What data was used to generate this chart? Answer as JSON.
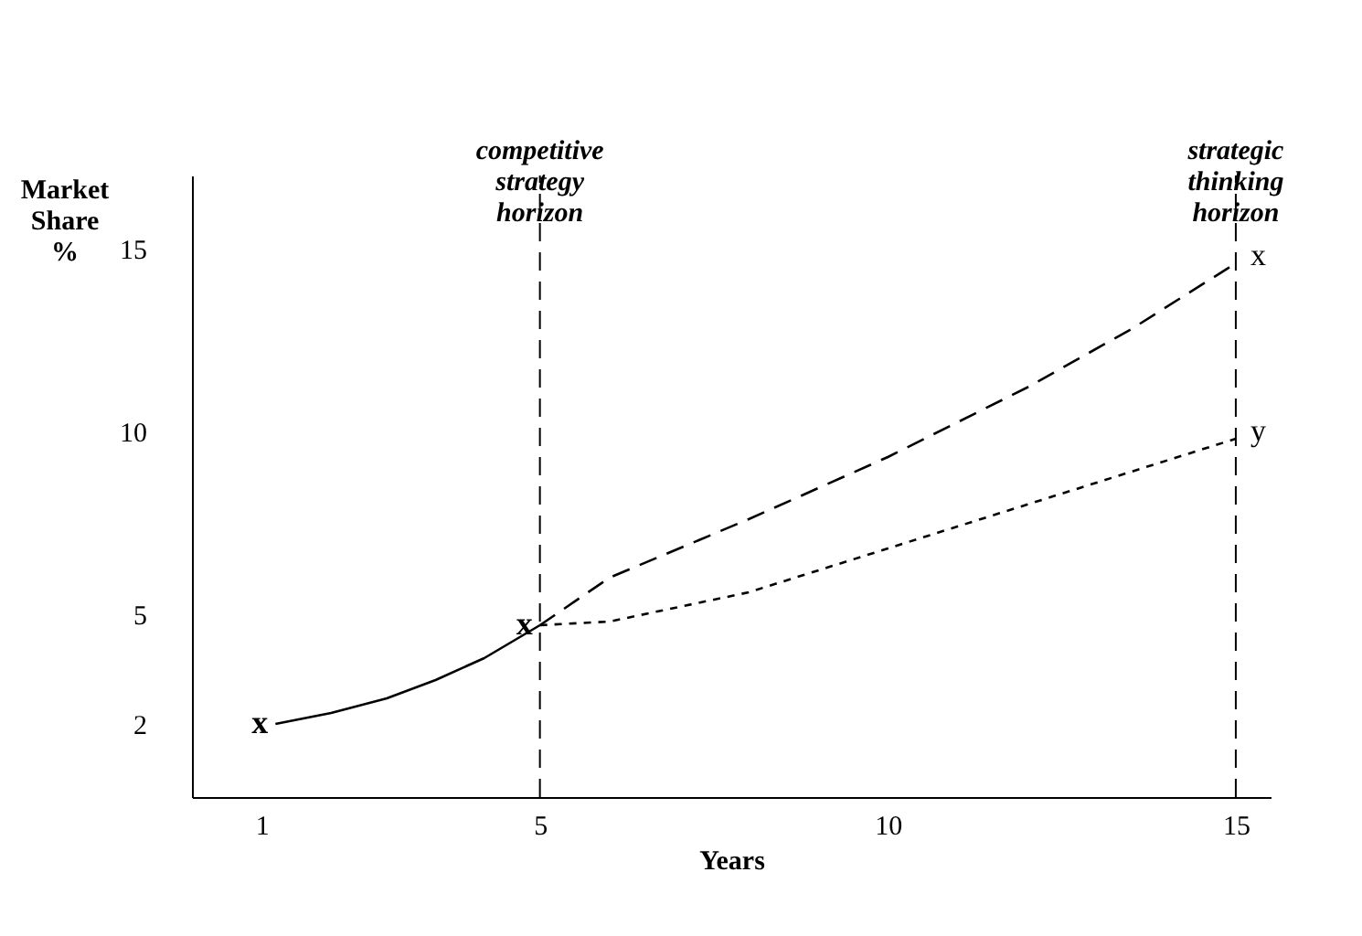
{
  "chart_data": {
    "type": "line",
    "xlabel": "Years",
    "ylabel": "Market Share %",
    "xlim": [
      0,
      15.5
    ],
    "ylim": [
      0,
      17
    ],
    "xticks": [
      1,
      5,
      10,
      15
    ],
    "yticks": [
      2,
      5,
      10,
      15
    ],
    "grid": false,
    "legend": false,
    "marker": "none",
    "series": [
      {
        "color": "#000000",
        "line_style": "solid",
        "x": [
          1.2,
          2,
          2.8,
          3.5,
          4.2,
          5
        ],
        "values": [
          2,
          2.3,
          2.7,
          3.2,
          3.8,
          4.7
        ]
      },
      {
        "name": "x",
        "color": "#000000",
        "line_style": "dashed",
        "x": [
          5,
          6,
          8,
          10,
          12,
          13.5,
          15
        ],
        "values": [
          4.7,
          6,
          7.6,
          9.3,
          11.2,
          12.8,
          14.6
        ]
      },
      {
        "name": "y",
        "color": "#000000",
        "line_style": "dotted",
        "x": [
          5,
          6,
          8,
          10,
          12,
          13.5,
          15
        ],
        "values": [
          4.7,
          4.8,
          5.6,
          6.8,
          8,
          8.9,
          9.8
        ]
      }
    ],
    "ref_lines": [
      {
        "axis": "x",
        "value": 5,
        "label": "competitive strategy horizon",
        "line_style": "dashed"
      },
      {
        "axis": "x",
        "value": 15,
        "label": "strategic thinking horizon",
        "line_style": "dashed"
      }
    ],
    "annotations": [
      {
        "text": "x",
        "x": 1.2,
        "y": 2
      },
      {
        "text": "x",
        "x": 5,
        "y": 4.7
      }
    ]
  }
}
